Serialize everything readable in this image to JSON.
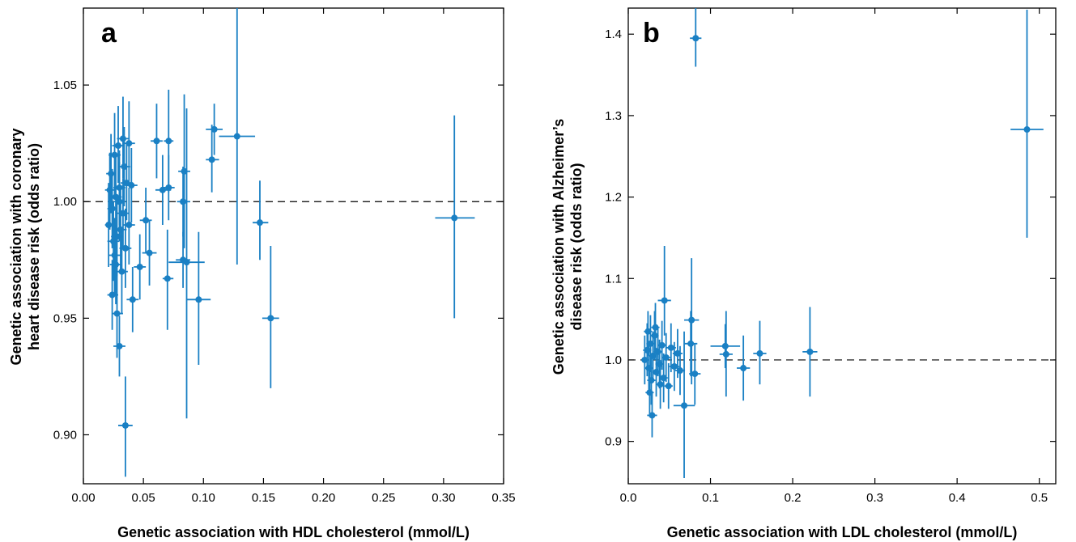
{
  "chart_data": [
    {
      "type": "scatter",
      "panel_label": "a",
      "xlabel": "Genetic association with HDL cholesterol (mmol/L)",
      "ylabel": [
        "Genetic association with coronary",
        "heart disease risk (odds ratio)"
      ],
      "xlim": [
        0.0,
        0.35
      ],
      "ylim": [
        0.879,
        1.083
      ],
      "xticks": [
        0.0,
        0.05,
        0.1,
        0.15,
        0.2,
        0.25,
        0.3,
        0.35
      ],
      "xtick_labels": [
        "0.00",
        "0.05",
        "0.10",
        "0.15",
        "0.20",
        "0.25",
        "0.30",
        "0.35"
      ],
      "yticks": [
        0.9,
        0.95,
        1.0,
        1.05
      ],
      "ytick_labels": [
        "0.90",
        "0.95",
        "1.00",
        "1.05"
      ],
      "reference_line_y": 1.0,
      "grid": false,
      "color": "#1a80c4",
      "points": [
        {
          "x": 0.309,
          "y": 0.993,
          "xlo": 0.293,
          "xhi": 0.326,
          "ylo": 0.95,
          "yhi": 1.037
        },
        {
          "x": 0.156,
          "y": 0.95,
          "xlo": 0.149,
          "xhi": 0.163,
          "ylo": 0.92,
          "yhi": 0.981
        },
        {
          "x": 0.147,
          "y": 0.991,
          "xlo": 0.141,
          "xhi": 0.154,
          "ylo": 0.975,
          "yhi": 1.009
        },
        {
          "x": 0.128,
          "y": 1.028,
          "xlo": 0.113,
          "xhi": 0.143,
          "ylo": 0.973,
          "yhi": 1.084
        },
        {
          "x": 0.109,
          "y": 1.031,
          "xlo": 0.102,
          "xhi": 0.116,
          "ylo": 1.02,
          "yhi": 1.042
        },
        {
          "x": 0.107,
          "y": 1.018,
          "xlo": 0.102,
          "xhi": 0.113,
          "ylo": 1.004,
          "yhi": 1.033
        },
        {
          "x": 0.096,
          "y": 0.958,
          "xlo": 0.086,
          "xhi": 0.106,
          "ylo": 0.93,
          "yhi": 0.987
        },
        {
          "x": 0.086,
          "y": 0.974,
          "xlo": 0.071,
          "xhi": 0.101,
          "ylo": 0.907,
          "yhi": 1.04
        },
        {
          "x": 0.084,
          "y": 1.013,
          "xlo": 0.079,
          "xhi": 0.089,
          "ylo": 0.98,
          "yhi": 1.046
        },
        {
          "x": 0.083,
          "y": 1.0,
          "xlo": 0.078,
          "xhi": 0.089,
          "ylo": 0.985,
          "yhi": 1.015
        },
        {
          "x": 0.083,
          "y": 0.975,
          "xlo": 0.077,
          "xhi": 0.089,
          "ylo": 0.963,
          "yhi": 0.987
        },
        {
          "x": 0.071,
          "y": 1.026,
          "xlo": 0.067,
          "xhi": 0.075,
          "ylo": 1.004,
          "yhi": 1.048
        },
        {
          "x": 0.071,
          "y": 1.006,
          "xlo": 0.067,
          "xhi": 0.076,
          "ylo": 0.992,
          "yhi": 1.02
        },
        {
          "x": 0.07,
          "y": 0.967,
          "xlo": 0.066,
          "xhi": 0.075,
          "ylo": 0.945,
          "yhi": 0.988
        },
        {
          "x": 0.066,
          "y": 1.005,
          "xlo": 0.06,
          "xhi": 0.073,
          "ylo": 0.99,
          "yhi": 1.02
        },
        {
          "x": 0.061,
          "y": 1.026,
          "xlo": 0.056,
          "xhi": 0.066,
          "ylo": 1.01,
          "yhi": 1.042
        },
        {
          "x": 0.055,
          "y": 0.978,
          "xlo": 0.049,
          "xhi": 0.061,
          "ylo": 0.964,
          "yhi": 0.992
        },
        {
          "x": 0.052,
          "y": 0.992,
          "xlo": 0.047,
          "xhi": 0.057,
          "ylo": 0.978,
          "yhi": 1.006
        },
        {
          "x": 0.047,
          "y": 0.972,
          "xlo": 0.042,
          "xhi": 0.052,
          "ylo": 0.958,
          "yhi": 0.986
        },
        {
          "x": 0.041,
          "y": 0.958,
          "xlo": 0.036,
          "xhi": 0.046,
          "ylo": 0.944,
          "yhi": 0.972
        },
        {
          "x": 0.035,
          "y": 0.904,
          "xlo": 0.029,
          "xhi": 0.041,
          "ylo": 0.882,
          "yhi": 0.925
        },
        {
          "x": 0.03,
          "y": 0.938,
          "xlo": 0.025,
          "xhi": 0.035,
          "ylo": 0.925,
          "yhi": 0.951
        },
        {
          "x": 0.028,
          "y": 0.952,
          "xlo": 0.024,
          "xhi": 0.033,
          "ylo": 0.933,
          "yhi": 0.97
        },
        {
          "x": 0.024,
          "y": 0.96,
          "xlo": 0.02,
          "xhi": 0.029,
          "ylo": 0.945,
          "yhi": 0.975
        },
        {
          "x": 0.026,
          "y": 0.977,
          "xlo": 0.021,
          "xhi": 0.031,
          "ylo": 0.96,
          "yhi": 0.993
        },
        {
          "x": 0.032,
          "y": 0.97,
          "xlo": 0.027,
          "xhi": 0.037,
          "ylo": 0.952,
          "yhi": 0.988
        },
        {
          "x": 0.028,
          "y": 0.985,
          "xlo": 0.023,
          "xhi": 0.033,
          "ylo": 0.968,
          "yhi": 1.002
        },
        {
          "x": 0.021,
          "y": 0.99,
          "xlo": 0.018,
          "xhi": 0.025,
          "ylo": 0.972,
          "yhi": 1.008
        },
        {
          "x": 0.024,
          "y": 0.997,
          "xlo": 0.02,
          "xhi": 0.028,
          "ylo": 0.98,
          "yhi": 1.014
        },
        {
          "x": 0.027,
          "y": 1.002,
          "xlo": 0.022,
          "xhi": 0.032,
          "ylo": 0.985,
          "yhi": 1.019
        },
        {
          "x": 0.03,
          "y": 1.006,
          "xlo": 0.025,
          "xhi": 0.035,
          "ylo": 0.99,
          "yhi": 1.022
        },
        {
          "x": 0.033,
          "y": 0.995,
          "xlo": 0.028,
          "xhi": 0.038,
          "ylo": 0.98,
          "yhi": 1.01
        },
        {
          "x": 0.036,
          "y": 1.008,
          "xlo": 0.031,
          "xhi": 0.041,
          "ylo": 0.992,
          "yhi": 1.025
        },
        {
          "x": 0.04,
          "y": 1.007,
          "xlo": 0.035,
          "xhi": 0.045,
          "ylo": 0.991,
          "yhi": 1.023
        },
        {
          "x": 0.023,
          "y": 1.012,
          "xlo": 0.019,
          "xhi": 0.027,
          "ylo": 0.995,
          "yhi": 1.029
        },
        {
          "x": 0.026,
          "y": 1.02,
          "xlo": 0.021,
          "xhi": 0.031,
          "ylo": 1.002,
          "yhi": 1.038
        },
        {
          "x": 0.029,
          "y": 1.024,
          "xlo": 0.024,
          "xhi": 0.034,
          "ylo": 1.008,
          "yhi": 1.041
        },
        {
          "x": 0.033,
          "y": 1.027,
          "xlo": 0.028,
          "xhi": 0.038,
          "ylo": 1.01,
          "yhi": 1.045
        },
        {
          "x": 0.038,
          "y": 1.025,
          "xlo": 0.033,
          "xhi": 0.043,
          "ylo": 1.008,
          "yhi": 1.043
        },
        {
          "x": 0.025,
          "y": 0.983,
          "xlo": 0.02,
          "xhi": 0.03,
          "ylo": 0.966,
          "yhi": 1.0
        },
        {
          "x": 0.031,
          "y": 0.988,
          "xlo": 0.026,
          "xhi": 0.036,
          "ylo": 0.97,
          "yhi": 1.005
        },
        {
          "x": 0.035,
          "y": 0.98,
          "xlo": 0.03,
          "xhi": 0.04,
          "ylo": 0.963,
          "yhi": 0.997
        },
        {
          "x": 0.038,
          "y": 0.99,
          "xlo": 0.033,
          "xhi": 0.043,
          "ylo": 0.973,
          "yhi": 1.006
        },
        {
          "x": 0.03,
          "y": 1.0,
          "xlo": 0.025,
          "xhi": 0.035,
          "ylo": 0.983,
          "yhi": 1.017
        },
        {
          "x": 0.022,
          "y": 1.005,
          "xlo": 0.018,
          "xhi": 0.026,
          "ylo": 0.988,
          "yhi": 1.021
        },
        {
          "x": 0.034,
          "y": 1.015,
          "xlo": 0.029,
          "xhi": 0.039,
          "ylo": 0.998,
          "yhi": 1.032
        },
        {
          "x": 0.027,
          "y": 0.973,
          "xlo": 0.022,
          "xhi": 0.032,
          "ylo": 0.956,
          "yhi": 0.99
        }
      ]
    },
    {
      "type": "scatter",
      "panel_label": "b",
      "xlabel": "Genetic association with LDL cholesterol (mmol/L)",
      "ylabel": [
        "Genetic association with Alzheimer’s",
        "disease risk (odds ratio)"
      ],
      "xlim": [
        0.0,
        0.52
      ],
      "ylim": [
        0.848,
        1.432
      ],
      "xticks": [
        0.0,
        0.1,
        0.2,
        0.3,
        0.4,
        0.5
      ],
      "xtick_labels": [
        "0.0",
        "0.1",
        "0.2",
        "0.3",
        "0.4",
        "0.5"
      ],
      "yticks": [
        0.9,
        1.0,
        1.1,
        1.2,
        1.3,
        1.4
      ],
      "ytick_labels": [
        "0.9",
        "1.0",
        "1.1",
        "1.2",
        "1.3",
        "1.4"
      ],
      "reference_line_y": 1.0,
      "grid": false,
      "color": "#1a80c4",
      "points": [
        {
          "x": 0.485,
          "y": 1.283,
          "xlo": 0.465,
          "xhi": 0.505,
          "ylo": 1.15,
          "yhi": 1.43
        },
        {
          "x": 0.082,
          "y": 1.395,
          "xlo": 0.075,
          "xhi": 0.089,
          "ylo": 1.36,
          "yhi": 1.44
        },
        {
          "x": 0.221,
          "y": 1.01,
          "xlo": 0.212,
          "xhi": 0.23,
          "ylo": 0.955,
          "yhi": 1.065
        },
        {
          "x": 0.16,
          "y": 1.008,
          "xlo": 0.152,
          "xhi": 0.168,
          "ylo": 0.97,
          "yhi": 1.048
        },
        {
          "x": 0.14,
          "y": 0.99,
          "xlo": 0.132,
          "xhi": 0.148,
          "ylo": 0.95,
          "yhi": 1.03
        },
        {
          "x": 0.118,
          "y": 1.017,
          "xlo": 0.1,
          "xhi": 0.136,
          "ylo": 0.99,
          "yhi": 1.044
        },
        {
          "x": 0.119,
          "y": 1.007,
          "xlo": 0.111,
          "xhi": 0.127,
          "ylo": 0.955,
          "yhi": 1.06
        },
        {
          "x": 0.077,
          "y": 1.049,
          "xlo": 0.068,
          "xhi": 0.086,
          "ylo": 0.97,
          "yhi": 1.125
        },
        {
          "x": 0.076,
          "y": 1.02,
          "xlo": 0.068,
          "xhi": 0.084,
          "ylo": 0.98,
          "yhi": 1.06
        },
        {
          "x": 0.081,
          "y": 0.983,
          "xlo": 0.074,
          "xhi": 0.088,
          "ylo": 0.945,
          "yhi": 1.02
        },
        {
          "x": 0.068,
          "y": 0.944,
          "xlo": 0.055,
          "xhi": 0.081,
          "ylo": 0.855,
          "yhi": 1.035
        },
        {
          "x": 0.044,
          "y": 1.073,
          "xlo": 0.036,
          "xhi": 0.052,
          "ylo": 1.03,
          "yhi": 1.14
        },
        {
          "x": 0.029,
          "y": 0.932,
          "xlo": 0.023,
          "xhi": 0.035,
          "ylo": 0.905,
          "yhi": 0.96
        },
        {
          "x": 0.02,
          "y": 1.0,
          "xlo": 0.016,
          "xhi": 0.024,
          "ylo": 0.97,
          "yhi": 1.03
        },
        {
          "x": 0.023,
          "y": 1.012,
          "xlo": 0.018,
          "xhi": 0.028,
          "ylo": 0.98,
          "yhi": 1.045
        },
        {
          "x": 0.025,
          "y": 0.99,
          "xlo": 0.02,
          "xhi": 0.03,
          "ylo": 0.96,
          "yhi": 1.02
        },
        {
          "x": 0.027,
          "y": 1.02,
          "xlo": 0.022,
          "xhi": 0.032,
          "ylo": 0.985,
          "yhi": 1.055
        },
        {
          "x": 0.028,
          "y": 0.975,
          "xlo": 0.023,
          "xhi": 0.033,
          "ylo": 0.945,
          "yhi": 1.005
        },
        {
          "x": 0.03,
          "y": 1.005,
          "xlo": 0.025,
          "xhi": 0.035,
          "ylo": 0.975,
          "yhi": 1.035
        },
        {
          "x": 0.032,
          "y": 1.03,
          "xlo": 0.027,
          "xhi": 0.037,
          "ylo": 1.0,
          "yhi": 1.06
        },
        {
          "x": 0.034,
          "y": 0.985,
          "xlo": 0.029,
          "xhi": 0.039,
          "ylo": 0.955,
          "yhi": 1.015
        },
        {
          "x": 0.036,
          "y": 1.01,
          "xlo": 0.031,
          "xhi": 0.041,
          "ylo": 0.98,
          "yhi": 1.04
        },
        {
          "x": 0.038,
          "y": 0.995,
          "xlo": 0.033,
          "xhi": 0.043,
          "ylo": 0.965,
          "yhi": 1.025
        },
        {
          "x": 0.041,
          "y": 1.018,
          "xlo": 0.036,
          "xhi": 0.046,
          "ylo": 0.988,
          "yhi": 1.048
        },
        {
          "x": 0.043,
          "y": 0.978,
          "xlo": 0.038,
          "xhi": 0.048,
          "ylo": 0.948,
          "yhi": 1.008
        },
        {
          "x": 0.046,
          "y": 1.003,
          "xlo": 0.041,
          "xhi": 0.051,
          "ylo": 0.973,
          "yhi": 1.033
        },
        {
          "x": 0.049,
          "y": 0.968,
          "xlo": 0.044,
          "xhi": 0.054,
          "ylo": 0.94,
          "yhi": 0.996
        },
        {
          "x": 0.052,
          "y": 1.015,
          "xlo": 0.046,
          "xhi": 0.058,
          "ylo": 0.985,
          "yhi": 1.045
        },
        {
          "x": 0.056,
          "y": 0.992,
          "xlo": 0.05,
          "xhi": 0.062,
          "ylo": 0.962,
          "yhi": 1.022
        },
        {
          "x": 0.06,
          "y": 1.008,
          "xlo": 0.054,
          "xhi": 0.066,
          "ylo": 0.978,
          "yhi": 1.038
        },
        {
          "x": 0.063,
          "y": 0.987,
          "xlo": 0.057,
          "xhi": 0.069,
          "ylo": 0.957,
          "yhi": 1.017
        },
        {
          "x": 0.024,
          "y": 1.035,
          "xlo": 0.019,
          "xhi": 0.029,
          "ylo": 1.005,
          "yhi": 1.06
        },
        {
          "x": 0.026,
          "y": 0.96,
          "xlo": 0.021,
          "xhi": 0.031,
          "ylo": 0.93,
          "yhi": 0.99
        },
        {
          "x": 0.033,
          "y": 1.04,
          "xlo": 0.028,
          "xhi": 0.038,
          "ylo": 1.01,
          "yhi": 1.07
        },
        {
          "x": 0.039,
          "y": 0.97,
          "xlo": 0.034,
          "xhi": 0.044,
          "ylo": 0.94,
          "yhi": 1.0
        }
      ]
    }
  ]
}
